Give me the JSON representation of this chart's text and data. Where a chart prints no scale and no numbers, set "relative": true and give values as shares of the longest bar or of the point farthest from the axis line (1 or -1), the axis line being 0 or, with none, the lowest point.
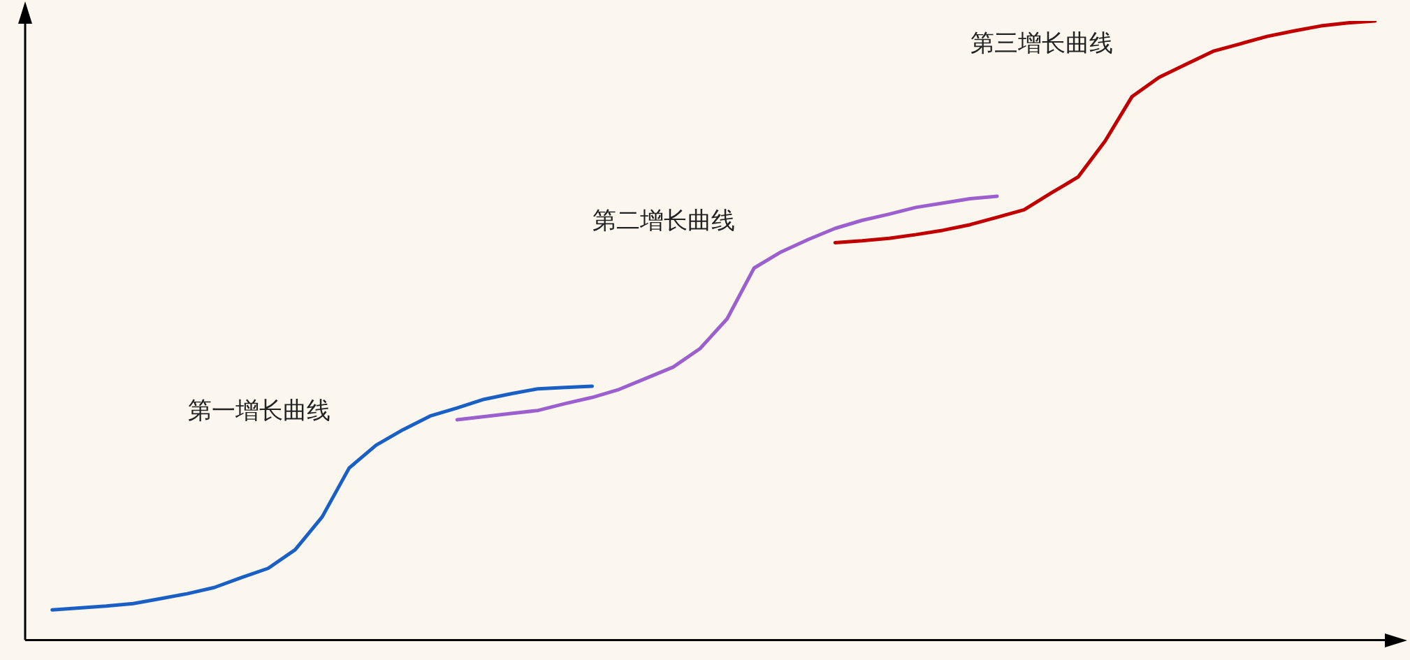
{
  "chart_data": {
    "type": "line",
    "relative": true,
    "grid": false,
    "legend": false,
    "marker": "none",
    "line_style": "solid",
    "categories": [
      null,
      null,
      null,
      null,
      null,
      null,
      null,
      null,
      null,
      null,
      null,
      null,
      null,
      null,
      null,
      null,
      null,
      null,
      null,
      null,
      null,
      null,
      null,
      null,
      null,
      null,
      null,
      null,
      null,
      null,
      null,
      null,
      null,
      null,
      null,
      null,
      null,
      null,
      null,
      null,
      null,
      null,
      null,
      null,
      null,
      null,
      null,
      null,
      null,
      null,
      null
    ],
    "series": [
      {
        "name": "第一增长曲线",
        "color": "#1a5fc4",
        "values": [
          null,
          0.049,
          0.052,
          0.055,
          0.059,
          0.067,
          0.075,
          0.085,
          0.101,
          0.116,
          0.146,
          0.199,
          0.278,
          0.315,
          0.34,
          0.362,
          0.375,
          0.389,
          0.398,
          0.406,
          0.408,
          0.41,
          null,
          null,
          null,
          null,
          null,
          null,
          null,
          null,
          null,
          null,
          null,
          null,
          null,
          null,
          null,
          null,
          null,
          null,
          null,
          null,
          null,
          null,
          null,
          null,
          null,
          null,
          null,
          null,
          null
        ]
      },
      {
        "name": "第二增长曲线",
        "color": "#9b5fce",
        "values": [
          null,
          null,
          null,
          null,
          null,
          null,
          null,
          null,
          null,
          null,
          null,
          null,
          null,
          null,
          null,
          null,
          0.356,
          0.361,
          0.366,
          0.371,
          0.382,
          0.392,
          0.405,
          0.423,
          0.441,
          0.471,
          0.519,
          0.601,
          0.627,
          0.647,
          0.665,
          0.678,
          0.688,
          0.699,
          0.706,
          0.713,
          0.717,
          null,
          null,
          null,
          null,
          null,
          null,
          null,
          null,
          null,
          null,
          null,
          null,
          null,
          null
        ]
      },
      {
        "name": "第三增长曲线",
        "color": "#c00000",
        "values": [
          null,
          null,
          null,
          null,
          null,
          null,
          null,
          null,
          null,
          null,
          null,
          null,
          null,
          null,
          null,
          null,
          null,
          null,
          null,
          null,
          null,
          null,
          null,
          null,
          null,
          null,
          null,
          null,
          null,
          null,
          0.642,
          0.645,
          0.649,
          0.655,
          0.662,
          0.671,
          0.683,
          0.695,
          0.722,
          0.748,
          0.806,
          0.878,
          0.909,
          0.93,
          0.951,
          0.963,
          0.975,
          0.984,
          0.992,
          0.997,
          1.0
        ]
      }
    ]
  }
}
